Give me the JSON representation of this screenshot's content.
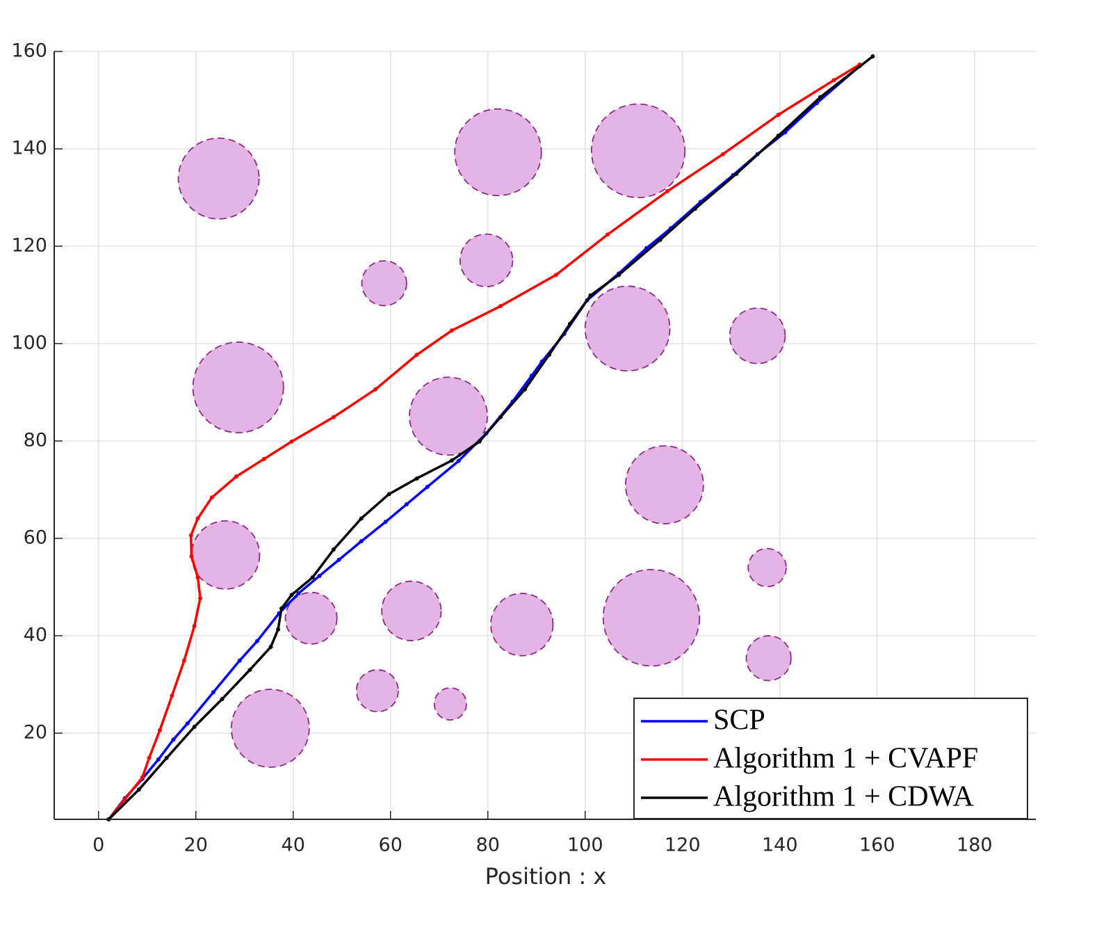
{
  "chart_data": {
    "type": "line",
    "xlabel": "Position : x",
    "xlim": [
      -9.1,
      192.6
    ],
    "ylim": [
      2.3,
      160
    ],
    "xticks": [
      0,
      20,
      40,
      60,
      80,
      100,
      120,
      140,
      160,
      180
    ],
    "yticks": [
      20,
      40,
      60,
      80,
      100,
      120,
      140,
      160
    ],
    "grid": true,
    "legend": "southeast",
    "obstacles": {
      "color": "#e4b4e4",
      "edge_color": "#8b2a8b",
      "x": [
        24.7,
        82.1,
        110.9,
        58.7,
        79.7,
        28.7,
        71.9,
        108.7,
        135.4,
        116.3,
        26.1,
        43.7,
        64.3,
        87.0,
        113.6,
        137.4,
        137.7,
        57.3,
        72.3,
        35.3
      ],
      "y": [
        133.9,
        139.3,
        139.6,
        112.4,
        117.1,
        91.0,
        85.1,
        103.1,
        101.6,
        71.0,
        56.6,
        43.6,
        45.1,
        42.3,
        43.7,
        54.0,
        35.4,
        28.7,
        26.0,
        21.0
      ],
      "r": [
        8.3,
        8.9,
        9.6,
        4.6,
        5.4,
        9.3,
        8.0,
        8.7,
        5.7,
        8.0,
        7.0,
        5.3,
        6.1,
        6.4,
        9.9,
        3.9,
        4.6,
        4.3,
        3.3,
        8.0
      ]
    },
    "series": [
      {
        "name": "SCP",
        "color": "#0000ff",
        "x": [
          2.1,
          5.4,
          9.0,
          12.3,
          15.4,
          18.3,
          23.6,
          29.0,
          32.6,
          37.1,
          41.1,
          45.4,
          49.4,
          54.0,
          59.0,
          63.3,
          67.6,
          74.0,
          79.7,
          85.1,
          89.0,
          91.1,
          95.7,
          100.4,
          106.9,
          112.6,
          117.6,
          123.7,
          130.4,
          135.4,
          141.1,
          147.6,
          156.4
        ],
        "y": [
          2.3,
          6.6,
          10.6,
          14.6,
          18.7,
          22.0,
          28.4,
          34.9,
          38.9,
          44.6,
          48.7,
          52.3,
          55.6,
          59.4,
          63.4,
          67.0,
          70.6,
          75.9,
          81.6,
          88.1,
          93.4,
          96.3,
          102.0,
          108.9,
          114.4,
          119.6,
          123.7,
          129.1,
          134.6,
          138.9,
          143.4,
          149.4,
          157.0
        ]
      },
      {
        "name": "Algorithm 1 + CVAPF",
        "color": "#ff0000",
        "x": [
          2.1,
          5.4,
          9.0,
          10.4,
          12.6,
          15.1,
          17.6,
          19.7,
          20.9,
          20.4,
          19.1,
          19.0,
          20.4,
          23.3,
          28.3,
          34.0,
          39.7,
          48.3,
          56.9,
          65.4,
          72.6,
          82.6,
          94.0,
          104.6,
          116.9,
          128.3,
          139.7,
          151.1,
          156.4
        ],
        "y": [
          2.3,
          6.4,
          10.9,
          14.9,
          20.6,
          27.7,
          34.9,
          42.0,
          47.7,
          52.0,
          56.3,
          60.6,
          64.1,
          68.4,
          72.7,
          76.3,
          79.9,
          84.9,
          90.6,
          97.7,
          102.7,
          107.7,
          114.1,
          122.4,
          131.3,
          138.9,
          147.0,
          154.1,
          157.3
        ]
      },
      {
        "name": "Algorithm 1 + CDWA",
        "color": "#000000",
        "x": [
          2.1,
          8.3,
          14.0,
          19.7,
          25.4,
          31.1,
          35.4,
          36.9,
          37.6,
          39.7,
          44.0,
          48.3,
          54.0,
          59.7,
          65.4,
          72.6,
          78.3,
          82.6,
          87.6,
          92.6,
          96.9,
          101.1,
          106.9,
          115.4,
          122.6,
          131.1,
          139.7,
          148.3,
          159.1
        ],
        "y": [
          2.3,
          8.4,
          14.9,
          21.3,
          27.0,
          33.0,
          37.7,
          41.3,
          45.6,
          48.4,
          52.0,
          57.7,
          64.1,
          69.1,
          72.3,
          76.0,
          79.9,
          84.9,
          90.6,
          97.7,
          104.1,
          109.9,
          114.1,
          121.3,
          127.7,
          134.9,
          142.7,
          150.6,
          159.0
        ]
      }
    ]
  }
}
